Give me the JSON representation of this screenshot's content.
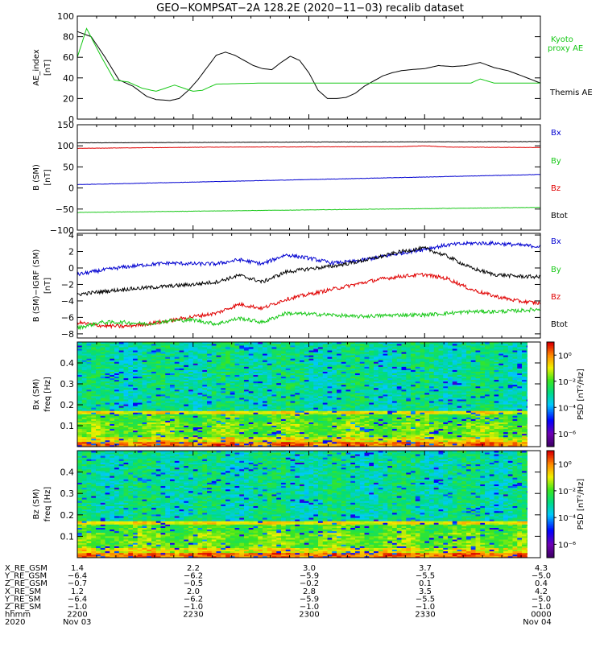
{
  "title": "GEO−KOMPSAT−2A 128.2E (2020−11−03) recalib dataset",
  "colors": {
    "black": "#000000",
    "red": "#e00000",
    "green": "#18c818",
    "blue": "#0000d0",
    "kyoto": "#18c818"
  },
  "chart_data": [
    {
      "id": "ae",
      "type": "line",
      "ylabel": [
        "AE_index",
        "[nT]"
      ],
      "ylim": [
        0,
        100
      ],
      "yticks": [
        0,
        20,
        40,
        60,
        80,
        100
      ],
      "ytick_labels": [
        "0",
        "20",
        "40",
        "60",
        "80",
        "100"
      ],
      "legend": [
        {
          "text": "Kyoto",
          "color": "#18c818"
        },
        {
          "text": "proxy AE",
          "color": "#18c818"
        },
        {
          "text": "Themis AE",
          "color": "#000000"
        }
      ],
      "series": [
        {
          "name": "Themis AE",
          "color": "#000000",
          "x": [
            0,
            0.03,
            0.06,
            0.09,
            0.12,
            0.15,
            0.17,
            0.2,
            0.22,
            0.24,
            0.26,
            0.28,
            0.3,
            0.32,
            0.34,
            0.36,
            0.38,
            0.4,
            0.42,
            0.44,
            0.46,
            0.48,
            0.5,
            0.52,
            0.54,
            0.56,
            0.58,
            0.6,
            0.62,
            0.64,
            0.66,
            0.68,
            0.7,
            0.72,
            0.75,
            0.78,
            0.81,
            0.84,
            0.87,
            0.9,
            0.93,
            0.96,
            1.0
          ],
          "y": [
            85,
            80,
            60,
            38,
            32,
            22,
            19,
            18,
            20,
            28,
            38,
            50,
            62,
            65,
            62,
            57,
            52,
            49,
            48,
            55,
            61,
            57,
            45,
            28,
            20,
            20,
            21,
            25,
            32,
            37,
            42,
            45,
            47,
            48,
            49,
            52,
            51,
            52,
            55,
            50,
            47,
            42,
            35
          ]
        },
        {
          "name": "Kyoto proxy AE",
          "color": "#18c818",
          "x": [
            0,
            0.02,
            0.05,
            0.08,
            0.11,
            0.14,
            0.17,
            0.19,
            0.21,
            0.23,
            0.25,
            0.27,
            0.3,
            0.4,
            0.5,
            0.6,
            0.7,
            0.76,
            0.8,
            0.85,
            0.87,
            0.9,
            0.95,
            1.0
          ],
          "y": [
            60,
            88,
            62,
            38,
            36,
            30,
            27,
            30,
            33,
            30,
            27,
            28,
            34,
            35,
            35,
            35,
            35,
            35,
            35,
            35,
            39,
            35,
            35,
            35
          ]
        }
      ]
    },
    {
      "id": "bsm",
      "type": "line",
      "ylabel": [
        "B (SM)",
        "[nT]"
      ],
      "ylim": [
        -100,
        150
      ],
      "yticks": [
        -100,
        -50,
        0,
        50,
        100,
        150
      ],
      "ytick_labels": [
        "−100",
        "−50",
        "0",
        "50",
        "100",
        "150"
      ],
      "legend": [
        {
          "text": "Bx",
          "color": "#0000d0"
        },
        {
          "text": "By",
          "color": "#18c818"
        },
        {
          "text": "Bz",
          "color": "#e00000"
        },
        {
          "text": "Btot",
          "color": "#000000"
        }
      ],
      "series": [
        {
          "name": "Btot",
          "color": "#000000",
          "x": [
            0,
            0.5,
            1.0
          ],
          "y": [
            107,
            109,
            110
          ]
        },
        {
          "name": "Bz",
          "color": "#e00000",
          "x": [
            0,
            0.3,
            0.7,
            0.75,
            0.8,
            1.0
          ],
          "y": [
            94,
            97,
            98,
            100,
            97,
            96
          ]
        },
        {
          "name": "Bx",
          "color": "#0000d0",
          "x": [
            0,
            0.5,
            1.0
          ],
          "y": [
            8,
            20,
            32
          ]
        },
        {
          "name": "By",
          "color": "#18c818",
          "x": [
            0,
            0.5,
            1.0
          ],
          "y": [
            -58,
            -52,
            -46
          ]
        }
      ]
    },
    {
      "id": "dbsm",
      "type": "line",
      "ylabel": [
        "B (SM)−IGRF (SM)",
        "[nT]"
      ],
      "ylim": [
        -8.5,
        4.2
      ],
      "yticks": [
        -8,
        -6,
        -4,
        -2,
        0,
        2,
        4
      ],
      "ytick_labels": [
        "−8",
        "−6",
        "−4",
        "−2",
        "0",
        "2",
        "4"
      ],
      "legend": [
        {
          "text": "Bx",
          "color": "#0000d0"
        },
        {
          "text": "By",
          "color": "#18c818"
        },
        {
          "text": "Bz",
          "color": "#e00000"
        },
        {
          "text": "Btot",
          "color": "#000000"
        }
      ],
      "series": [
        {
          "name": "Bx",
          "color": "#0000d0",
          "x": [
            0,
            0.05,
            0.1,
            0.15,
            0.2,
            0.25,
            0.3,
            0.35,
            0.4,
            0.45,
            0.5,
            0.55,
            0.6,
            0.65,
            0.7,
            0.75,
            0.8,
            0.85,
            0.9,
            0.95,
            1.0
          ],
          "y": [
            -0.8,
            -0.3,
            0.1,
            0.4,
            0.6,
            0.5,
            0.5,
            1.0,
            0.5,
            1.6,
            1.2,
            0.6,
            0.8,
            1.3,
            1.8,
            2.3,
            2.8,
            3.0,
            3.0,
            2.8,
            2.6
          ]
        },
        {
          "name": "Btot",
          "color": "#000000",
          "x": [
            0,
            0.05,
            0.1,
            0.15,
            0.2,
            0.25,
            0.3,
            0.35,
            0.4,
            0.45,
            0.5,
            0.55,
            0.6,
            0.65,
            0.7,
            0.75,
            0.8,
            0.85,
            0.9,
            0.95,
            1.0
          ],
          "y": [
            -3.2,
            -2.9,
            -2.6,
            -2.4,
            -2.2,
            -2.0,
            -1.7,
            -0.9,
            -1.7,
            -0.5,
            -0.1,
            0.2,
            0.7,
            1.3,
            2.0,
            2.4,
            1.4,
            0.0,
            -0.8,
            -1.0,
            -1.1
          ]
        },
        {
          "name": "Bz",
          "color": "#e00000",
          "x": [
            0,
            0.05,
            0.1,
            0.15,
            0.2,
            0.25,
            0.3,
            0.35,
            0.4,
            0.45,
            0.5,
            0.55,
            0.6,
            0.65,
            0.7,
            0.75,
            0.8,
            0.85,
            0.9,
            0.95,
            1.0
          ],
          "y": [
            -6.6,
            -7.0,
            -7.1,
            -6.8,
            -6.4,
            -5.9,
            -5.5,
            -4.4,
            -4.9,
            -3.8,
            -3.2,
            -2.6,
            -2.0,
            -1.4,
            -1.0,
            -0.8,
            -1.3,
            -2.6,
            -3.4,
            -4.0,
            -4.3
          ]
        },
        {
          "name": "By",
          "color": "#18c818",
          "x": [
            0,
            0.05,
            0.1,
            0.15,
            0.2,
            0.25,
            0.3,
            0.35,
            0.4,
            0.45,
            0.5,
            0.55,
            0.6,
            0.65,
            0.7,
            0.75,
            0.8,
            0.85,
            0.9,
            0.95,
            1.0
          ],
          "y": [
            -7.3,
            -6.6,
            -6.6,
            -6.8,
            -6.4,
            -6.3,
            -6.8,
            -6.1,
            -6.6,
            -5.5,
            -5.6,
            -5.7,
            -5.9,
            -5.8,
            -5.7,
            -5.7,
            -5.5,
            -5.3,
            -5.3,
            -5.2,
            -5.0
          ]
        }
      ]
    },
    {
      "id": "specbx",
      "type": "heatmap",
      "ylabel": [
        "Bx (SM)",
        "freq [Hz]"
      ],
      "ylim": [
        0,
        0.5
      ],
      "yticks": [
        0.1,
        0.2,
        0.3,
        0.4
      ],
      "ytick_labels": [
        "0.1",
        "0.2",
        "0.3",
        "0.4"
      ],
      "colorbar": {
        "label": "PSD [nT²/Hz]",
        "ticks": [
          "10⁰",
          "10⁻²",
          "10⁻⁴",
          "10⁻⁶"
        ],
        "range": [
          -7,
          1
        ]
      }
    },
    {
      "id": "specbz",
      "type": "heatmap",
      "ylabel": [
        "Bz (SM)",
        "freq [Hz]"
      ],
      "ylim": [
        0,
        0.5
      ],
      "yticks": [
        0.1,
        0.2,
        0.3,
        0.4
      ],
      "ytick_labels": [
        "0.1",
        "0.2",
        "0.3",
        "0.4"
      ],
      "colorbar": {
        "label": "PSD [nT²/Hz]",
        "ticks": [
          "10⁰",
          "10⁻²",
          "10⁻⁴",
          "10⁻⁶"
        ],
        "range": [
          -7,
          1
        ]
      }
    }
  ],
  "x_axis": {
    "range": [
      0,
      120
    ],
    "major_ticks": [
      0,
      30,
      60,
      90,
      120
    ],
    "row_labels": [
      "X_RE_GSM",
      "Y_RE_GSM",
      "Z_RE_GSM",
      "X_RE_SM",
      "Y_RE_SM",
      "Z_RE_SM",
      "hhmm",
      "2020"
    ],
    "columns": [
      [
        "1.4",
        "−6.4",
        "−0.7",
        "1.2",
        "−6.4",
        "−1.0",
        "2200",
        "Nov 03"
      ],
      [
        "2.2",
        "−6.2",
        "−0.5",
        "2.0",
        "−6.2",
        "−1.0",
        "2230",
        ""
      ],
      [
        "3.0",
        "−5.9",
        "−0.2",
        "2.8",
        "−5.9",
        "−1.0",
        "2300",
        ""
      ],
      [
        "3.7",
        "−5.5",
        "0.1",
        "3.5",
        "−5.5",
        "−1.0",
        "2330",
        ""
      ],
      [
        "4.3",
        "−5.0",
        "0.4",
        "4.2",
        "−5.0",
        "−1.0",
        "0000",
        "Nov 04"
      ]
    ]
  }
}
